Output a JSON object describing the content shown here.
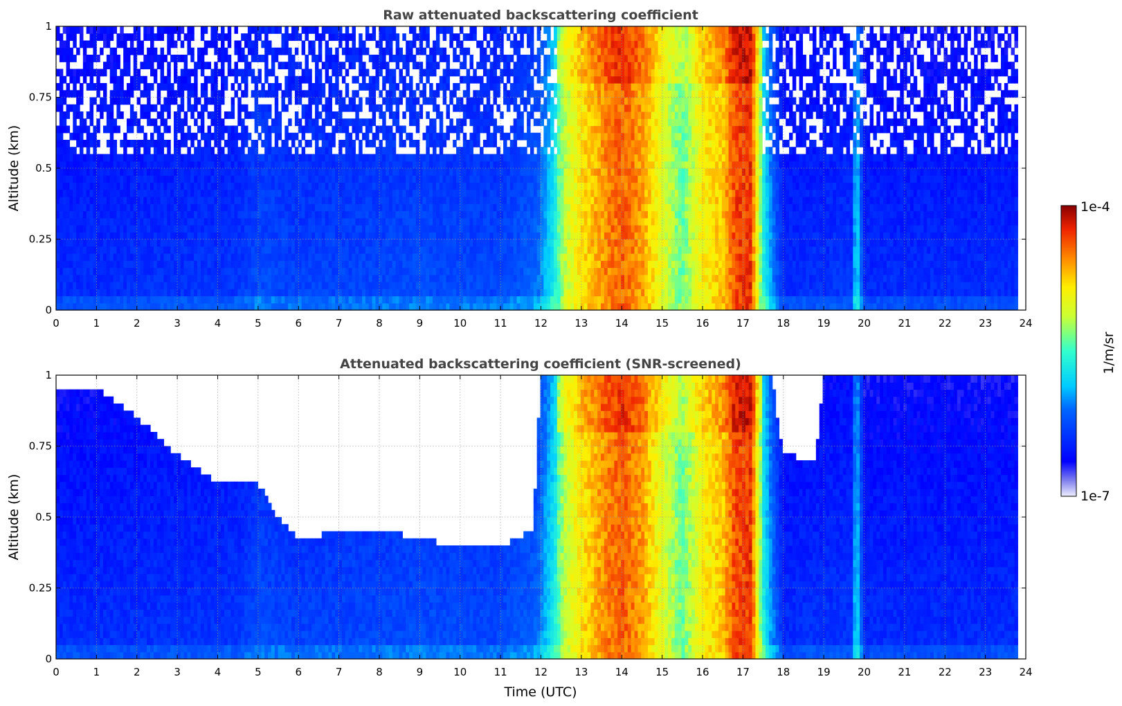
{
  "chart_data": [
    {
      "type": "heatmap",
      "title": "Raw attenuated backscattering coefficient",
      "xlabel": "",
      "ylabel": "Altitude (km)",
      "xlim": [
        0,
        24
      ],
      "ylim": [
        0,
        1
      ],
      "xticks": [
        "0",
        "1",
        "2",
        "3",
        "4",
        "5",
        "6",
        "7",
        "8",
        "9",
        "10",
        "11",
        "12",
        "13",
        "14",
        "15",
        "16",
        "17",
        "18",
        "19",
        "20",
        "21",
        "22",
        "23",
        "24"
      ],
      "yticks": [
        "0",
        "0.25",
        "0.5",
        "0.75",
        "1"
      ],
      "grid": true,
      "screened": false,
      "time_profile": {
        "x": [
          0,
          4.5,
          5,
          6,
          9,
          11,
          11.9,
          12.3,
          12.6,
          13,
          13.6,
          14,
          14.5,
          15,
          15.5,
          16,
          16.5,
          16.8,
          17.2,
          17.5,
          17.7,
          18,
          19.7,
          19.8,
          20,
          23.8
        ],
        "level": [
          0.2,
          0.22,
          0.26,
          0.24,
          0.26,
          0.25,
          0.3,
          0.45,
          0.62,
          0.72,
          0.82,
          0.86,
          0.8,
          0.66,
          0.54,
          0.7,
          0.76,
          0.88,
          0.9,
          0.48,
          0.35,
          0.2,
          0.22,
          0.45,
          0.2,
          0.2
        ]
      }
    },
    {
      "type": "heatmap",
      "title": "Attenuated backscattering coefficient (SNR-screened)",
      "xlabel": "Time (UTC)",
      "ylabel": "Altitude (km)",
      "xlim": [
        0,
        24
      ],
      "ylim": [
        0,
        1
      ],
      "xticks": [
        "0",
        "1",
        "2",
        "3",
        "4",
        "5",
        "6",
        "7",
        "8",
        "9",
        "10",
        "11",
        "12",
        "13",
        "14",
        "15",
        "16",
        "17",
        "18",
        "19",
        "20",
        "21",
        "22",
        "23",
        "24"
      ],
      "yticks": [
        "0",
        "0.25",
        "0.5",
        "0.75",
        "1"
      ],
      "grid": true,
      "screened": true,
      "screen_top_km": {
        "x": [
          0,
          1,
          2,
          3,
          4,
          4.5,
          5,
          5.5,
          6,
          7,
          8,
          9,
          10,
          11,
          11.8,
          12,
          17.7,
          18,
          18.8,
          19,
          23.8
        ],
        "top": [
          0.95,
          0.95,
          0.85,
          0.72,
          0.62,
          0.62,
          0.62,
          0.5,
          0.42,
          0.45,
          0.46,
          0.42,
          0.4,
          0.4,
          0.45,
          1.0,
          1.0,
          0.72,
          0.7,
          1.0,
          1.0
        ]
      },
      "time_profile": {
        "x": [
          0,
          4.5,
          5,
          6,
          9,
          11,
          11.9,
          12.3,
          12.6,
          13,
          13.6,
          14,
          14.5,
          15,
          15.5,
          16,
          16.5,
          16.8,
          17.2,
          17.5,
          17.7,
          18,
          19.7,
          19.8,
          20,
          23.8
        ],
        "level": [
          0.2,
          0.22,
          0.26,
          0.24,
          0.26,
          0.25,
          0.3,
          0.45,
          0.62,
          0.72,
          0.82,
          0.86,
          0.8,
          0.66,
          0.54,
          0.7,
          0.76,
          0.88,
          0.9,
          0.48,
          0.35,
          0.2,
          0.22,
          0.45,
          0.2,
          0.2
        ]
      }
    }
  ],
  "colorbar": {
    "max_label": "1e-4",
    "min_label": "1e-7",
    "unit_label": "1/m/sr",
    "scale": "log",
    "colormap": "jet"
  }
}
